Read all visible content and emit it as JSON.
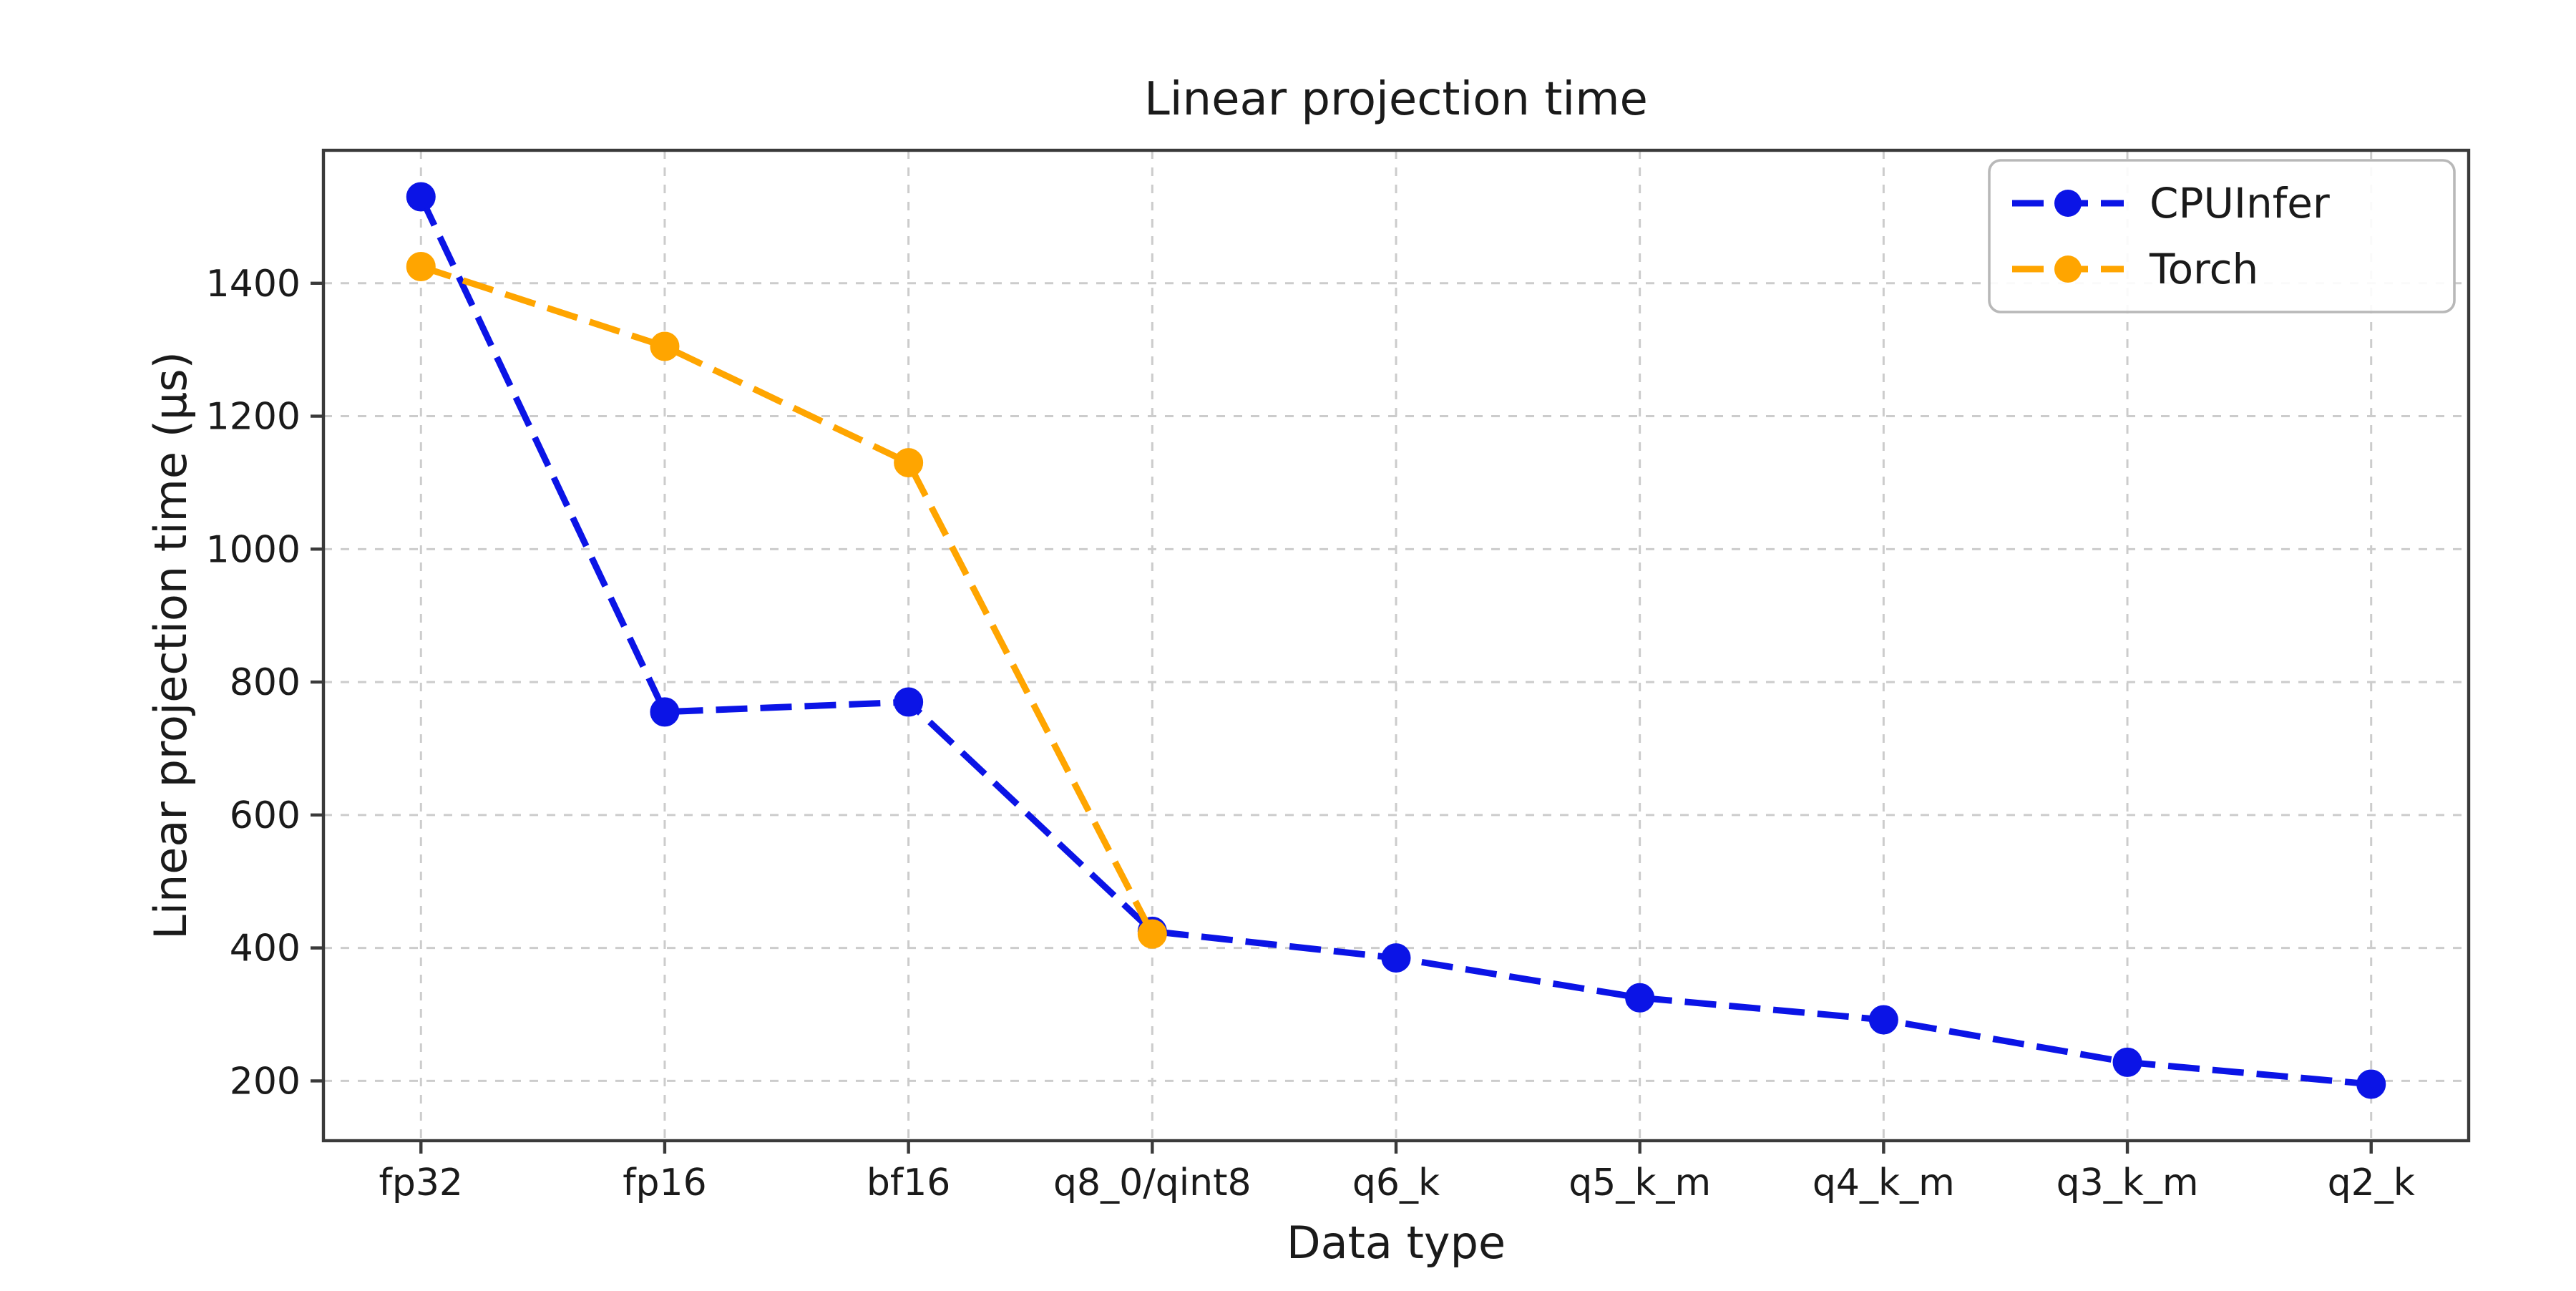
{
  "chart_data": {
    "type": "line",
    "title": "Linear projection time",
    "xlabel": "Data type",
    "ylabel": "Linear projection time (µs)",
    "categories": [
      "fp32",
      "fp16",
      "bf16",
      "q8_0/qint8",
      "q6_k",
      "q5_k_m",
      "q4_k_m",
      "q3_k_m",
      "q2_k"
    ],
    "series": [
      {
        "name": "CPUInfer",
        "color": "#0b14e6",
        "line_style": "dashed",
        "marker": "circle",
        "values": [
          1530,
          755,
          770,
          425,
          385,
          325,
          292,
          228,
          195
        ]
      },
      {
        "name": "Torch",
        "color": "#ffa500",
        "line_style": "dashed",
        "marker": "circle",
        "values": [
          1425,
          1305,
          1130,
          421,
          null,
          null,
          null,
          null,
          null
        ]
      }
    ],
    "yticks": [
      200,
      400,
      600,
      800,
      1000,
      1200,
      1400
    ],
    "ylim": [
      110,
      1600
    ],
    "grid": true,
    "grid_style": "dashed",
    "grid_color": "#cccccc",
    "legend_position": "upper right",
    "axis_color": "#3a3a3a",
    "title_color": "#333333",
    "background": "#ffffff"
  }
}
